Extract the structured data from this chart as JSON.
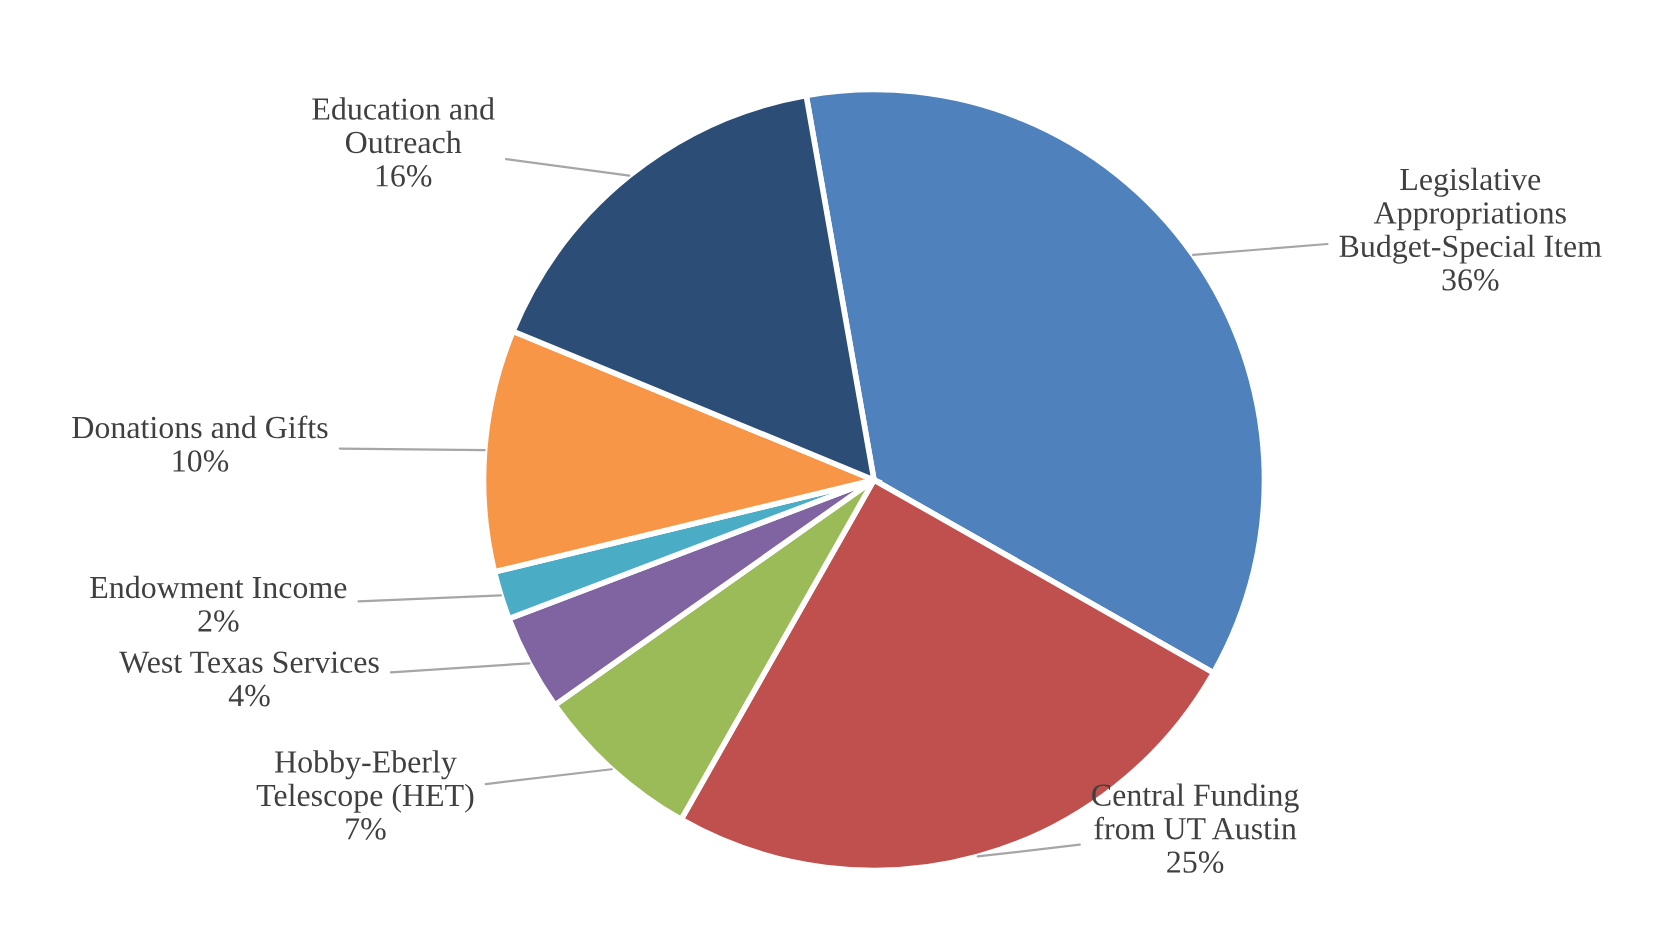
{
  "chart_data": {
    "type": "pie",
    "categories": [
      "Legislative\nAppropriations\nBudget-Special Item",
      "Central Funding\nfrom UT Austin",
      "Hobby-Eberly\nTelescope (HET)",
      "West Texas Services",
      "Endowment Income",
      "Donations and Gifts",
      "Education and\nOutreach"
    ],
    "values": [
      36,
      25,
      7,
      4,
      2,
      10,
      16
    ],
    "colors": [
      "#4f81bd",
      "#c0504d",
      "#9bbb59",
      "#8064a2",
      "#4bacc6",
      "#f79646",
      "#2c4d75"
    ],
    "value_labels": [
      "36%",
      "25%",
      "7%",
      "4%",
      "2%",
      "10%",
      "16%"
    ],
    "legend": false
  }
}
